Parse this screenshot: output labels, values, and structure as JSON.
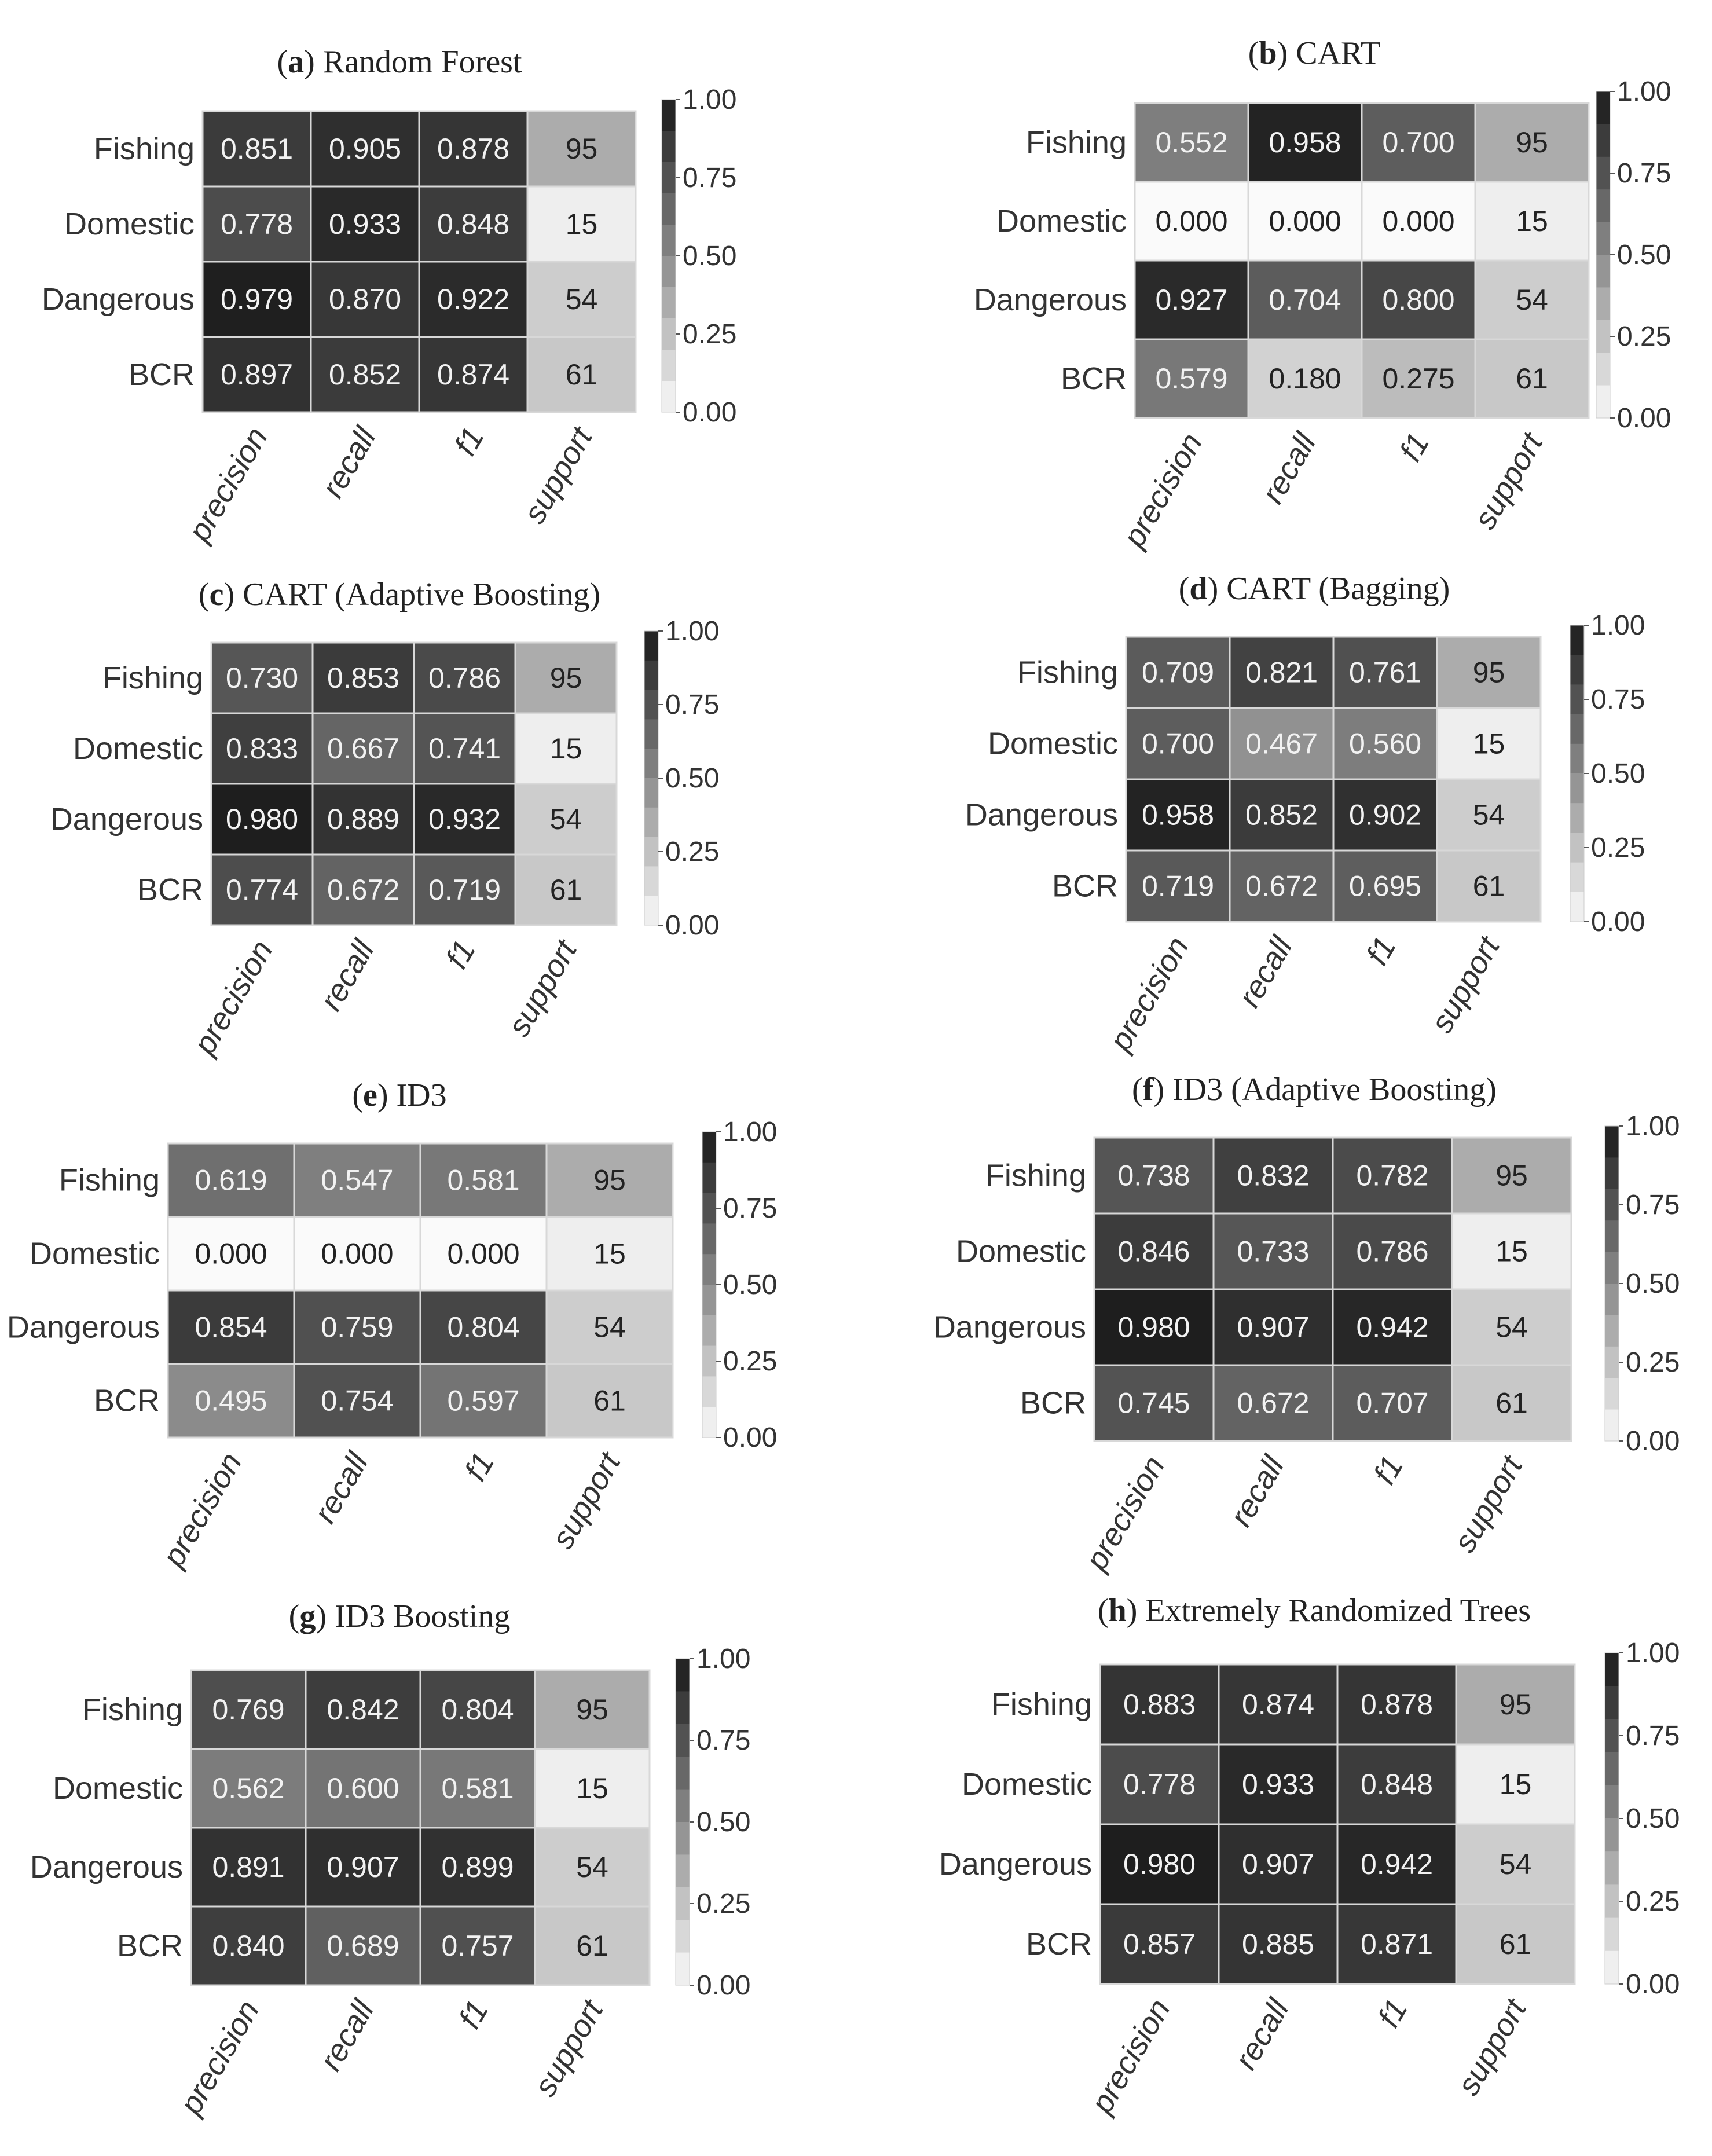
{
  "chart_data": [
    {
      "type": "heatmap",
      "title": "Random Forest",
      "title_letter": "a",
      "rows": [
        "Fishing",
        "Domestic",
        "Dangerous",
        "BCR"
      ],
      "columns": [
        "precision",
        "recall",
        "f1",
        "support"
      ],
      "values": [
        [
          "0.851",
          "0.905",
          "0.878",
          "95"
        ],
        [
          "0.778",
          "0.933",
          "0.848",
          "15"
        ],
        [
          "0.979",
          "0.870",
          "0.922",
          "54"
        ],
        [
          "0.897",
          "0.852",
          "0.874",
          "61"
        ]
      ],
      "colorbar_ticks": [
        "1.00",
        "0.75",
        "0.50",
        "0.25",
        "0.00"
      ],
      "colorbar_range": [
        0,
        1
      ]
    },
    {
      "type": "heatmap",
      "title": "CART",
      "title_letter": "b",
      "rows": [
        "Fishing",
        "Domestic",
        "Dangerous",
        "BCR"
      ],
      "columns": [
        "precision",
        "recall",
        "f1",
        "support"
      ],
      "values": [
        [
          "0.552",
          "0.958",
          "0.700",
          "95"
        ],
        [
          "0.000",
          "0.000",
          "0.000",
          "15"
        ],
        [
          "0.927",
          "0.704",
          "0.800",
          "54"
        ],
        [
          "0.579",
          "0.180",
          "0.275",
          "61"
        ]
      ],
      "colorbar_ticks": [
        "1.00",
        "0.75",
        "0.50",
        "0.25",
        "0.00"
      ],
      "colorbar_range": [
        0,
        1
      ]
    },
    {
      "type": "heatmap",
      "title": "CART (Adaptive Boosting)",
      "title_letter": "c",
      "rows": [
        "Fishing",
        "Domestic",
        "Dangerous",
        "BCR"
      ],
      "columns": [
        "precision",
        "recall",
        "f1",
        "support"
      ],
      "values": [
        [
          "0.730",
          "0.853",
          "0.786",
          "95"
        ],
        [
          "0.833",
          "0.667",
          "0.741",
          "15"
        ],
        [
          "0.980",
          "0.889",
          "0.932",
          "54"
        ],
        [
          "0.774",
          "0.672",
          "0.719",
          "61"
        ]
      ],
      "colorbar_ticks": [
        "1.00",
        "0.75",
        "0.50",
        "0.25",
        "0.00"
      ],
      "colorbar_range": [
        0,
        1
      ]
    },
    {
      "type": "heatmap",
      "title": "CART (Bagging)",
      "title_letter": "d",
      "rows": [
        "Fishing",
        "Domestic",
        "Dangerous",
        "BCR"
      ],
      "columns": [
        "precision",
        "recall",
        "f1",
        "support"
      ],
      "values": [
        [
          "0.709",
          "0.821",
          "0.761",
          "95"
        ],
        [
          "0.700",
          "0.467",
          "0.560",
          "15"
        ],
        [
          "0.958",
          "0.852",
          "0.902",
          "54"
        ],
        [
          "0.719",
          "0.672",
          "0.695",
          "61"
        ]
      ],
      "colorbar_ticks": [
        "1.00",
        "0.75",
        "0.50",
        "0.25",
        "0.00"
      ],
      "colorbar_range": [
        0,
        1
      ]
    },
    {
      "type": "heatmap",
      "title": "ID3",
      "title_letter": "e",
      "rows": [
        "Fishing",
        "Domestic",
        "Dangerous",
        "BCR"
      ],
      "columns": [
        "precision",
        "recall",
        "f1",
        "support"
      ],
      "values": [
        [
          "0.619",
          "0.547",
          "0.581",
          "95"
        ],
        [
          "0.000",
          "0.000",
          "0.000",
          "15"
        ],
        [
          "0.854",
          "0.759",
          "0.804",
          "54"
        ],
        [
          "0.495",
          "0.754",
          "0.597",
          "61"
        ]
      ],
      "colorbar_ticks": [
        "1.00",
        "0.75",
        "0.50",
        "0.25",
        "0.00"
      ],
      "colorbar_range": [
        0,
        1
      ]
    },
    {
      "type": "heatmap",
      "title": "ID3 (Adaptive Boosting)",
      "title_letter": "f",
      "rows": [
        "Fishing",
        "Domestic",
        "Dangerous",
        "BCR"
      ],
      "columns": [
        "precision",
        "recall",
        "f1",
        "support"
      ],
      "values": [
        [
          "0.738",
          "0.832",
          "0.782",
          "95"
        ],
        [
          "0.846",
          "0.733",
          "0.786",
          "15"
        ],
        [
          "0.980",
          "0.907",
          "0.942",
          "54"
        ],
        [
          "0.745",
          "0.672",
          "0.707",
          "61"
        ]
      ],
      "colorbar_ticks": [
        "1.00",
        "0.75",
        "0.50",
        "0.25",
        "0.00"
      ],
      "colorbar_range": [
        0,
        1
      ]
    },
    {
      "type": "heatmap",
      "title": "ID3 Boosting",
      "title_letter": "g",
      "rows": [
        "Fishing",
        "Domestic",
        "Dangerous",
        "BCR"
      ],
      "columns": [
        "precision",
        "recall",
        "f1",
        "support"
      ],
      "values": [
        [
          "0.769",
          "0.842",
          "0.804",
          "95"
        ],
        [
          "0.562",
          "0.600",
          "0.581",
          "15"
        ],
        [
          "0.891",
          "0.907",
          "0.899",
          "54"
        ],
        [
          "0.840",
          "0.689",
          "0.757",
          "61"
        ]
      ],
      "colorbar_ticks": [
        "1.00",
        "0.75",
        "0.50",
        "0.25",
        "0.00"
      ],
      "colorbar_range": [
        0,
        1
      ]
    },
    {
      "type": "heatmap",
      "title": "Extremely Randomized Trees",
      "title_letter": "h",
      "rows": [
        "Fishing",
        "Domestic",
        "Dangerous",
        "BCR"
      ],
      "columns": [
        "precision",
        "recall",
        "f1",
        "support"
      ],
      "values": [
        [
          "0.883",
          "0.874",
          "0.878",
          "95"
        ],
        [
          "0.778",
          "0.933",
          "0.848",
          "15"
        ],
        [
          "0.980",
          "0.907",
          "0.942",
          "54"
        ],
        [
          "0.857",
          "0.885",
          "0.871",
          "61"
        ]
      ],
      "colorbar_ticks": [
        "1.00",
        "0.75",
        "0.50",
        "0.25",
        "0.00"
      ],
      "colorbar_range": [
        0,
        1
      ]
    }
  ]
}
